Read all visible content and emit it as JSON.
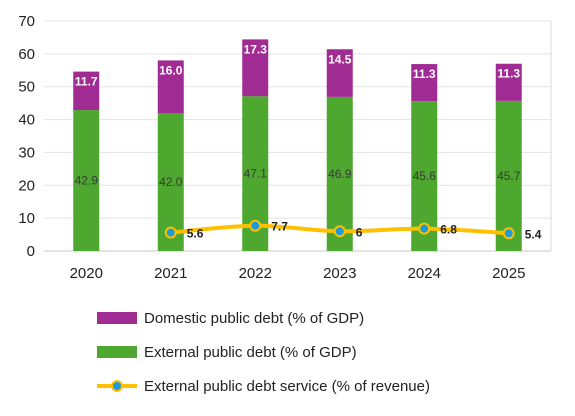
{
  "chart_data": {
    "type": "bar",
    "stacked": true,
    "categories": [
      "2020",
      "2021",
      "2022",
      "2023",
      "2024",
      "2025"
    ],
    "series": [
      {
        "name": "External public debt (% of GDP)",
        "kind": "bar",
        "color": "#4ea72e",
        "values": [
          42.9,
          42.0,
          47.1,
          46.9,
          45.6,
          45.7
        ],
        "labels": [
          "42.9",
          "42.0",
          "47.1",
          "46.9",
          "45.6",
          "45.7"
        ]
      },
      {
        "name": "Domestic public debt (% of GDP)",
        "kind": "bar",
        "color": "#a02b93",
        "values": [
          11.7,
          16.0,
          17.3,
          14.5,
          11.3,
          11.3
        ],
        "labels": [
          "11.7",
          "16.0",
          "17.3",
          "14.5",
          "11.3",
          "11.3"
        ]
      },
      {
        "name": "External public debt service (% of revenue)",
        "kind": "line",
        "color": "#ffc000",
        "marker_color": "#1f9bd7",
        "values": [
          null,
          5.6,
          7.7,
          6,
          6.8,
          5.4
        ],
        "labels": [
          "",
          "5.6",
          "7.7",
          "6",
          "6.8",
          "5.4"
        ]
      }
    ],
    "legend_order": [
      1,
      0,
      2
    ],
    "y_ticks": [
      "0",
      "10",
      "20",
      "30",
      "40",
      "50",
      "60",
      "70"
    ],
    "ylim": [
      0,
      70
    ],
    "grid": "horizontal",
    "legend_position": "bottom",
    "title": "",
    "xlabel": "",
    "ylabel": ""
  }
}
